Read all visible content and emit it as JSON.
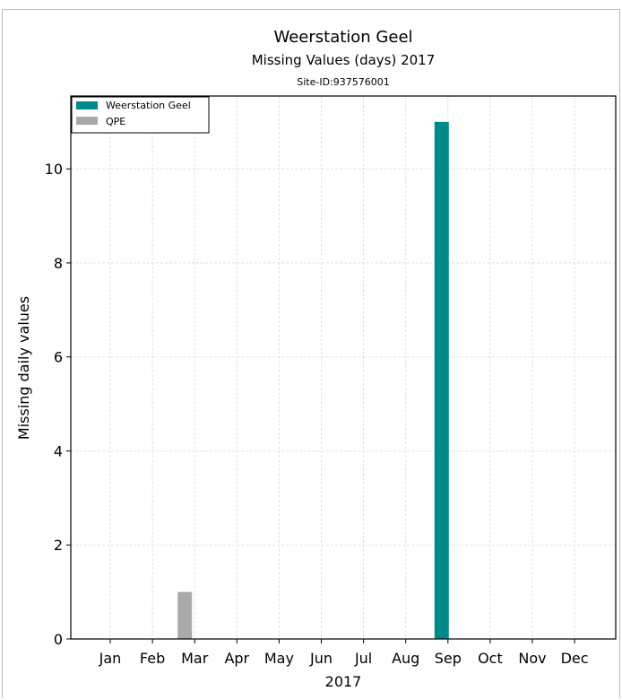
{
  "chart_data": {
    "type": "bar",
    "title": "Weerstation Geel",
    "subtitle": "Missing Values (days) 2017",
    "site_label": "Site-ID:937576001",
    "xlabel": "2017",
    "ylabel": "Missing daily values",
    "categories": [
      "Jan",
      "Feb",
      "Mar",
      "Apr",
      "May",
      "Jun",
      "Jul",
      "Aug",
      "Sep",
      "Oct",
      "Nov",
      "Dec"
    ],
    "series": [
      {
        "name": "Weerstation Geel",
        "color": "#008b8b",
        "values": [
          0,
          0,
          0,
          0,
          0,
          0,
          0,
          0,
          11,
          0,
          0,
          0
        ]
      },
      {
        "name": "QPE",
        "color": "#a9a9a9",
        "values": [
          0,
          0,
          1,
          0,
          0,
          0,
          0,
          0,
          0,
          0,
          0,
          0
        ]
      }
    ],
    "yticks": [
      0,
      2,
      4,
      6,
      8,
      10
    ],
    "ylim": [
      0,
      11.55
    ],
    "grid": true,
    "legend": "top-left"
  }
}
